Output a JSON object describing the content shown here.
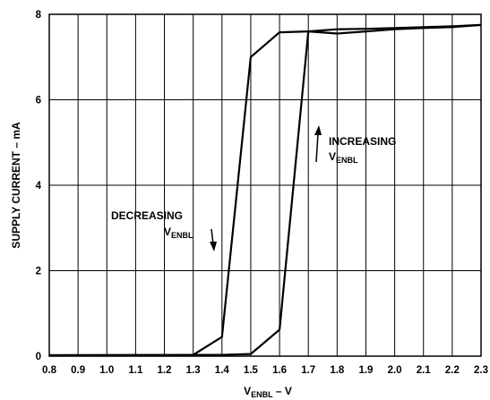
{
  "chart_data": {
    "type": "line",
    "title": "",
    "xlabel": {
      "main": "V",
      "sub": "ENBL",
      "suffix": " – V"
    },
    "ylabel": "SUPPLY CURRENT – mA",
    "xlim": [
      0.8,
      2.3
    ],
    "ylim": [
      0,
      8
    ],
    "x_ticks": [
      "0.8",
      "0.9",
      "1.0",
      "1.1",
      "1.2",
      "1.3",
      "1.4",
      "1.5",
      "1.6",
      "1.7",
      "1.8",
      "1.9",
      "2.0",
      "2.1",
      "2.2",
      "2.3"
    ],
    "y_ticks": [
      "0",
      "2",
      "4",
      "6",
      "8"
    ],
    "grid": true,
    "legend": "none",
    "colors": {
      "line": "#000000",
      "grid": "#000000",
      "background": "#ffffff"
    },
    "series": [
      {
        "points": [
          [
            0.8,
            0.02
          ],
          [
            1.3,
            0.03
          ],
          [
            1.4,
            0.45
          ],
          [
            1.5,
            7.0
          ],
          [
            1.6,
            7.58
          ],
          [
            1.7,
            7.6
          ],
          [
            1.8,
            7.55
          ],
          [
            1.9,
            7.6
          ],
          [
            2.0,
            7.65
          ],
          [
            2.1,
            7.68
          ],
          [
            2.2,
            7.7
          ],
          [
            2.3,
            7.75
          ]
        ]
      },
      {
        "points": [
          [
            0.8,
            0.02
          ],
          [
            1.3,
            0.03
          ],
          [
            1.4,
            0.03
          ],
          [
            1.5,
            0.05
          ],
          [
            1.6,
            0.62
          ],
          [
            1.7,
            7.6
          ],
          [
            1.8,
            7.65
          ],
          [
            1.9,
            7.66
          ],
          [
            2.0,
            7.68
          ],
          [
            2.1,
            7.7
          ],
          [
            2.2,
            7.72
          ],
          [
            2.3,
            7.75
          ]
        ]
      }
    ],
    "annotations": [
      {
        "text": "DECREASING",
        "sub_main": "V",
        "sub": "ENBL",
        "arrow": "down"
      },
      {
        "text": "INCREASING",
        "sub_main": "V",
        "sub": "ENBL",
        "arrow": "up"
      }
    ]
  }
}
